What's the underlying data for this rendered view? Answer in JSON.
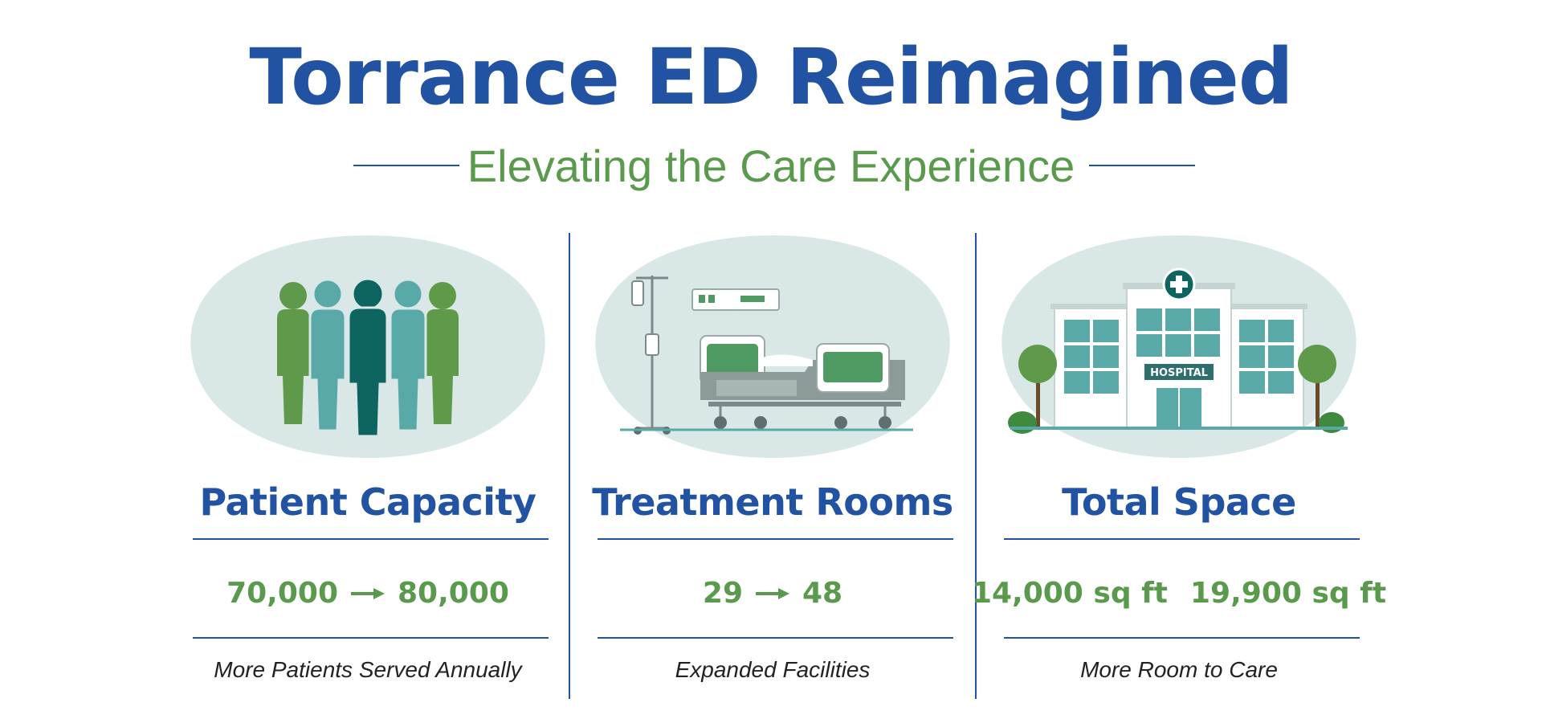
{
  "header": {
    "title": "Torrance ED Reimagined",
    "subtitle": "Elevating the Care Experience"
  },
  "colors": {
    "brand_blue": "#2253a3",
    "accent_green": "#5a9a4c",
    "blob_bg": "#d9e8e7",
    "teal_dark": "#0e6560",
    "teal_light": "#5aa9a9",
    "green_figure": "#5e9a4a"
  },
  "cards": [
    {
      "icon": "people-group-icon",
      "heading": "Patient Capacity",
      "before": "70,000",
      "after": "80,000",
      "caption": "More Patients Served Annually"
    },
    {
      "icon": "hospital-bed-icon",
      "heading": "Treatment Rooms",
      "before": "29",
      "after": "48",
      "caption": "Expanded Facilities"
    },
    {
      "icon": "hospital-building-icon",
      "heading": "Total Space",
      "before": "14,000 sq ft",
      "after": "19,900 sq ft",
      "caption": "More Room to Care"
    }
  ],
  "hospital_sign": "HOSPITAL"
}
